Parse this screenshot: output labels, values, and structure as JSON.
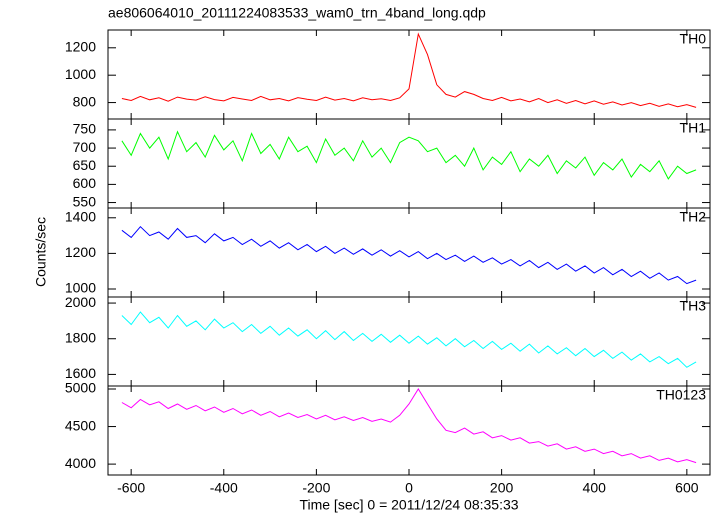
{
  "title": "ae806064010_20111224083533_wam0_trn_4band_long.qdp",
  "ylabel": "Counts/sec",
  "xlabel": "Time [sec] 0 = 2011/12/24 08:35:33",
  "chart_data": [
    {
      "type": "line",
      "xlim": [
        -650,
        650
      ],
      "xticks": [
        -600,
        -400,
        -200,
        0,
        200,
        400,
        600
      ],
      "ylim": [
        680,
        1330
      ],
      "yticks": [
        800,
        1000,
        1200
      ],
      "x": [
        -620,
        -600,
        -580,
        -560,
        -540,
        -520,
        -500,
        -480,
        -460,
        -440,
        -420,
        -400,
        -380,
        -360,
        -340,
        -320,
        -300,
        -280,
        -260,
        -240,
        -220,
        -200,
        -180,
        -160,
        -140,
        -120,
        -100,
        -80,
        -60,
        -40,
        -20,
        0,
        20,
        40,
        60,
        80,
        100,
        120,
        140,
        160,
        180,
        200,
        220,
        240,
        260,
        280,
        300,
        320,
        340,
        360,
        380,
        400,
        420,
        440,
        460,
        480,
        500,
        520,
        540,
        560,
        580,
        600,
        620
      ],
      "series": [
        {
          "name": "TH0",
          "color": "#ff0000",
          "values": [
            830,
            815,
            845,
            820,
            835,
            810,
            840,
            825,
            818,
            842,
            822,
            812,
            838,
            826,
            815,
            845,
            820,
            830,
            812,
            836,
            824,
            815,
            840,
            818,
            830,
            812,
            835,
            820,
            828,
            815,
            835,
            900,
            1300,
            1150,
            930,
            860,
            840,
            880,
            860,
            830,
            815,
            838,
            812,
            826,
            805,
            830,
            800,
            820,
            795,
            815,
            790,
            812,
            788,
            805,
            782,
            800,
            778,
            795,
            772,
            790,
            770,
            785,
            765
          ]
        }
      ]
    },
    {
      "type": "line",
      "xlim": [
        -650,
        650
      ],
      "xticks": [
        -600,
        -400,
        -200,
        0,
        200,
        400,
        600
      ],
      "ylim": [
        535,
        780
      ],
      "yticks": [
        550,
        600,
        650,
        700,
        750
      ],
      "x": [
        -620,
        -600,
        -580,
        -560,
        -540,
        -520,
        -500,
        -480,
        -460,
        -440,
        -420,
        -400,
        -380,
        -360,
        -340,
        -320,
        -300,
        -280,
        -260,
        -240,
        -220,
        -200,
        -180,
        -160,
        -140,
        -120,
        -100,
        -80,
        -60,
        -40,
        -20,
        0,
        20,
        40,
        60,
        80,
        100,
        120,
        140,
        160,
        180,
        200,
        220,
        240,
        260,
        280,
        300,
        320,
        340,
        360,
        380,
        400,
        420,
        440,
        460,
        480,
        500,
        520,
        540,
        560,
        580,
        600,
        620
      ],
      "series": [
        {
          "name": "TH1",
          "color": "#00ff00",
          "values": [
            720,
            680,
            740,
            700,
            730,
            670,
            745,
            690,
            715,
            675,
            735,
            695,
            720,
            665,
            740,
            685,
            710,
            670,
            730,
            690,
            705,
            660,
            725,
            680,
            700,
            665,
            720,
            675,
            700,
            660,
            715,
            730,
            720,
            690,
            700,
            660,
            680,
            650,
            700,
            640,
            675,
            655,
            690,
            635,
            670,
            650,
            680,
            630,
            665,
            645,
            675,
            625,
            660,
            640,
            670,
            620,
            655,
            635,
            665,
            615,
            650,
            630,
            640
          ]
        }
      ]
    },
    {
      "type": "line",
      "xlim": [
        -650,
        650
      ],
      "xticks": [
        -600,
        -400,
        -200,
        0,
        200,
        400,
        600
      ],
      "ylim": [
        955,
        1455
      ],
      "yticks": [
        1000,
        1200,
        1400
      ],
      "x": [
        -620,
        -600,
        -580,
        -560,
        -540,
        -520,
        -500,
        -480,
        -460,
        -440,
        -420,
        -400,
        -380,
        -360,
        -340,
        -320,
        -300,
        -280,
        -260,
        -240,
        -220,
        -200,
        -180,
        -160,
        -140,
        -120,
        -100,
        -80,
        -60,
        -40,
        -20,
        0,
        20,
        40,
        60,
        80,
        100,
        120,
        140,
        160,
        180,
        200,
        220,
        240,
        260,
        280,
        300,
        320,
        340,
        360,
        380,
        400,
        420,
        440,
        460,
        480,
        500,
        520,
        540,
        560,
        580,
        600,
        620
      ],
      "series": [
        {
          "name": "TH2",
          "color": "#0000ff",
          "values": [
            1330,
            1290,
            1350,
            1300,
            1320,
            1280,
            1340,
            1290,
            1300,
            1260,
            1310,
            1270,
            1290,
            1250,
            1280,
            1240,
            1270,
            1230,
            1260,
            1220,
            1250,
            1210,
            1240,
            1200,
            1230,
            1195,
            1225,
            1190,
            1220,
            1185,
            1215,
            1180,
            1210,
            1170,
            1200,
            1165,
            1190,
            1155,
            1185,
            1150,
            1175,
            1140,
            1165,
            1130,
            1160,
            1120,
            1150,
            1110,
            1140,
            1100,
            1130,
            1090,
            1120,
            1080,
            1110,
            1070,
            1100,
            1060,
            1090,
            1050,
            1070,
            1030,
            1050
          ]
        }
      ]
    },
    {
      "type": "line",
      "xlim": [
        -650,
        650
      ],
      "xticks": [
        -600,
        -400,
        -200,
        0,
        200,
        400,
        600
      ],
      "ylim": [
        1535,
        2034
      ],
      "yticks": [
        1600,
        1800,
        2000
      ],
      "x": [
        -620,
        -600,
        -580,
        -560,
        -540,
        -520,
        -500,
        -480,
        -460,
        -440,
        -420,
        -400,
        -380,
        -360,
        -340,
        -320,
        -300,
        -280,
        -260,
        -240,
        -220,
        -200,
        -180,
        -160,
        -140,
        -120,
        -100,
        -80,
        -60,
        -40,
        -20,
        0,
        20,
        40,
        60,
        80,
        100,
        120,
        140,
        160,
        180,
        200,
        220,
        240,
        260,
        280,
        300,
        320,
        340,
        360,
        380,
        400,
        420,
        440,
        460,
        480,
        500,
        520,
        540,
        560,
        580,
        600,
        620
      ],
      "series": [
        {
          "name": "TH3",
          "color": "#00ffff",
          "values": [
            1930,
            1880,
            1950,
            1890,
            1920,
            1860,
            1930,
            1870,
            1900,
            1850,
            1910,
            1860,
            1890,
            1840,
            1880,
            1830,
            1870,
            1820,
            1860,
            1815,
            1850,
            1800,
            1845,
            1795,
            1840,
            1790,
            1830,
            1785,
            1825,
            1780,
            1820,
            1775,
            1815,
            1770,
            1805,
            1760,
            1800,
            1755,
            1790,
            1745,
            1785,
            1740,
            1775,
            1730,
            1770,
            1720,
            1760,
            1715,
            1750,
            1705,
            1745,
            1700,
            1735,
            1690,
            1725,
            1680,
            1715,
            1670,
            1700,
            1660,
            1690,
            1640,
            1670
          ]
        }
      ]
    },
    {
      "type": "line",
      "xlim": [
        -650,
        650
      ],
      "xticks": [
        -600,
        -400,
        -200,
        0,
        200,
        400,
        600
      ],
      "ylim": [
        3855,
        5040
      ],
      "yticks": [
        4000,
        4500,
        5000
      ],
      "x": [
        -620,
        -600,
        -580,
        -560,
        -540,
        -520,
        -500,
        -480,
        -460,
        -440,
        -420,
        -400,
        -380,
        -360,
        -340,
        -320,
        -300,
        -280,
        -260,
        -240,
        -220,
        -200,
        -180,
        -160,
        -140,
        -120,
        -100,
        -80,
        -60,
        -40,
        -20,
        0,
        20,
        40,
        60,
        80,
        100,
        120,
        140,
        160,
        180,
        200,
        220,
        240,
        260,
        280,
        300,
        320,
        340,
        360,
        380,
        400,
        420,
        440,
        460,
        480,
        500,
        520,
        540,
        560,
        580,
        600,
        620
      ],
      "series": [
        {
          "name": "TH0123",
          "color": "#ff00ff",
          "values": [
            4820,
            4750,
            4860,
            4790,
            4830,
            4740,
            4800,
            4730,
            4780,
            4710,
            4760,
            4690,
            4740,
            4670,
            4720,
            4650,
            4700,
            4630,
            4680,
            4620,
            4660,
            4600,
            4650,
            4590,
            4630,
            4580,
            4620,
            4570,
            4600,
            4560,
            4650,
            4800,
            5000,
            4800,
            4600,
            4450,
            4420,
            4480,
            4400,
            4430,
            4350,
            4380,
            4320,
            4350,
            4280,
            4300,
            4240,
            4270,
            4200,
            4230,
            4170,
            4200,
            4140,
            4170,
            4110,
            4140,
            4080,
            4110,
            4050,
            4080,
            4030,
            4060,
            4020
          ]
        }
      ]
    }
  ]
}
